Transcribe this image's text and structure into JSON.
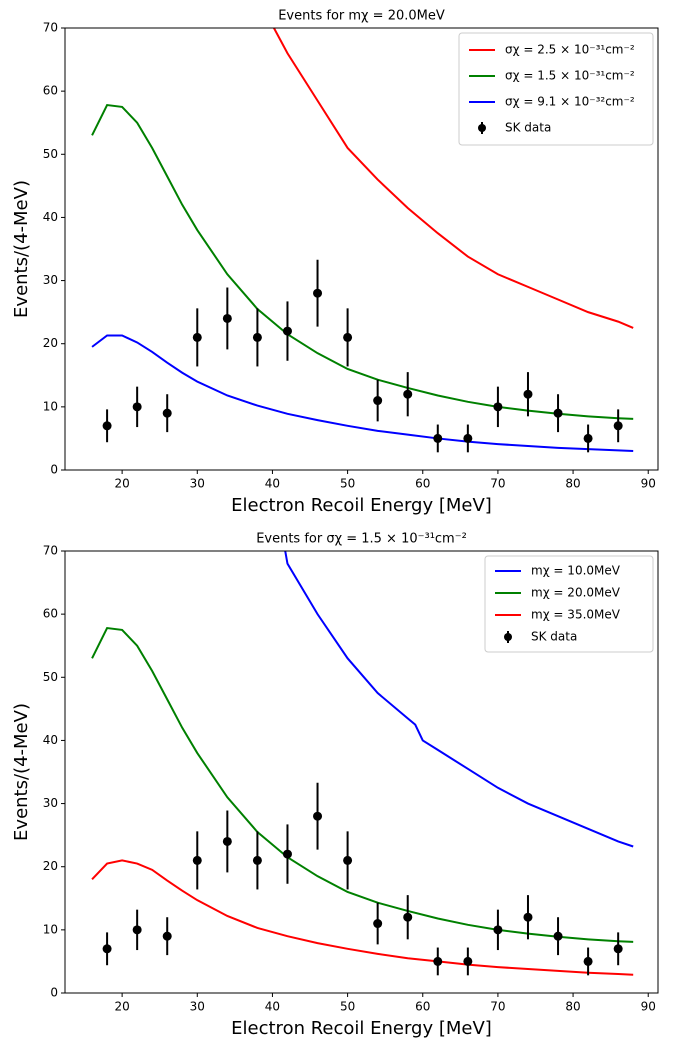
{
  "chart_data": [
    {
      "type": "line",
      "title": "Events for mχ = 20.0MeV",
      "xlabel": "Electron Recoil Energy [MeV]",
      "ylabel": "Events/(4-MeV)",
      "xlim": [
        12.4,
        91.3
      ],
      "ylim": [
        0,
        70
      ],
      "xticks": [
        20,
        30,
        40,
        50,
        60,
        70,
        80,
        90
      ],
      "yticks": [
        0,
        10,
        20,
        30,
        40,
        50,
        60,
        70
      ],
      "legend": "upper right",
      "series": [
        {
          "name": "σχ = 2.5 × 10⁻³¹cm⁻²",
          "color": "#ff0000",
          "x": [
            40.2,
            42,
            46,
            50,
            54,
            58,
            62,
            66,
            70,
            74,
            78,
            82,
            86,
            88
          ],
          "values": [
            70,
            66,
            58.5,
            51,
            46,
            41.5,
            37.5,
            33.8,
            31,
            29,
            27,
            25,
            23.5,
            22.5
          ]
        },
        {
          "name": "σχ = 1.5 × 10⁻³¹cm⁻²",
          "color": "#008000",
          "x": [
            16,
            18,
            20,
            22,
            24,
            26,
            28,
            30,
            34,
            38,
            42,
            46,
            50,
            54,
            58,
            62,
            66,
            70,
            74,
            78,
            82,
            86,
            88
          ],
          "values": [
            53,
            57.8,
            57.5,
            55,
            51,
            46.5,
            42,
            38,
            31,
            25.5,
            21.5,
            18.5,
            16,
            14.3,
            13,
            11.8,
            10.8,
            10,
            9.4,
            8.9,
            8.5,
            8.2,
            8.1
          ]
        },
        {
          "name": "σχ = 9.1 × 10⁻³²cm⁻²",
          "color": "#0000ff",
          "x": [
            16,
            18,
            20,
            22,
            24,
            26,
            28,
            30,
            34,
            38,
            42,
            46,
            50,
            54,
            58,
            62,
            66,
            70,
            74,
            78,
            82,
            86,
            88
          ],
          "values": [
            19.5,
            21.3,
            21.3,
            20.2,
            18.7,
            17,
            15.4,
            14,
            11.8,
            10.2,
            8.9,
            7.9,
            7,
            6.2,
            5.6,
            5,
            4.5,
            4.1,
            3.8,
            3.5,
            3.3,
            3.1,
            3.0
          ]
        },
        {
          "name": "SK data",
          "color": "#000000",
          "x": [
            18,
            22,
            26,
            30,
            34,
            38,
            42,
            46,
            50,
            54,
            58,
            62,
            66,
            70,
            74,
            78,
            82,
            86
          ],
          "values": [
            7,
            10,
            9,
            21,
            24,
            21,
            22,
            28,
            21,
            11,
            12,
            5,
            5,
            10,
            12,
            9,
            5,
            7
          ],
          "errors": [
            2.6,
            3.2,
            3,
            4.6,
            4.9,
            4.6,
            4.7,
            5.3,
            4.6,
            3.3,
            3.5,
            2.2,
            2.2,
            3.2,
            3.5,
            3,
            2.2,
            2.6
          ]
        }
      ]
    },
    {
      "type": "line",
      "title": "Events for σχ = 1.5 × 10⁻³¹cm⁻²",
      "xlabel": "Electron Recoil Energy [MeV]",
      "ylabel": "Events/(4-MeV)",
      "xlim": [
        12.4,
        91.3
      ],
      "ylim": [
        0,
        70
      ],
      "xticks": [
        20,
        30,
        40,
        50,
        60,
        70,
        80,
        90
      ],
      "yticks": [
        0,
        10,
        20,
        30,
        40,
        50,
        60,
        70
      ],
      "legend": "upper right",
      "series": [
        {
          "name": "mχ = 10.0MeV",
          "color": "#0000ff",
          "x": [
            41.7,
            42,
            46,
            50,
            54,
            58,
            59,
            60,
            62,
            66,
            70,
            74,
            78,
            82,
            86,
            88
          ],
          "values": [
            70,
            68,
            60,
            53,
            47.5,
            43.5,
            42.5,
            40,
            38.5,
            35.5,
            32.5,
            30,
            28,
            26,
            24,
            23.2
          ]
        },
        {
          "name": "mχ = 20.0MeV",
          "color": "#008000",
          "x": [
            16,
            18,
            20,
            22,
            24,
            26,
            28,
            30,
            34,
            38,
            42,
            46,
            50,
            54,
            58,
            62,
            66,
            70,
            74,
            78,
            82,
            86,
            88
          ],
          "values": [
            53,
            57.8,
            57.5,
            55,
            51,
            46.5,
            42,
            38,
            31,
            25.5,
            21.5,
            18.5,
            16,
            14.3,
            13,
            11.8,
            10.8,
            10,
            9.4,
            8.9,
            8.5,
            8.2,
            8.1
          ]
        },
        {
          "name": "mχ = 35.0MeV",
          "color": "#ff0000",
          "x": [
            16,
            18,
            20,
            22,
            24,
            26,
            28,
            30,
            34,
            38,
            42,
            46,
            50,
            54,
            58,
            62,
            66,
            70,
            74,
            78,
            82,
            86,
            88
          ],
          "values": [
            18,
            20.5,
            21,
            20.5,
            19.5,
            17.8,
            16.2,
            14.7,
            12.2,
            10.3,
            9,
            7.9,
            7,
            6.2,
            5.5,
            5,
            4.5,
            4.1,
            3.8,
            3.5,
            3.2,
            3,
            2.9
          ]
        },
        {
          "name": "SK data",
          "color": "#000000",
          "x": [
            18,
            22,
            26,
            30,
            34,
            38,
            42,
            46,
            50,
            54,
            58,
            62,
            66,
            70,
            74,
            78,
            82,
            86
          ],
          "values": [
            7,
            10,
            9,
            21,
            24,
            21,
            22,
            28,
            21,
            11,
            12,
            5,
            5,
            10,
            12,
            9,
            5,
            7
          ],
          "errors": [
            2.6,
            3.2,
            3,
            4.6,
            4.9,
            4.6,
            4.7,
            5.3,
            4.6,
            3.3,
            3.5,
            2.2,
            2.2,
            3.2,
            3.5,
            3,
            2.2,
            2.6
          ]
        }
      ]
    }
  ]
}
